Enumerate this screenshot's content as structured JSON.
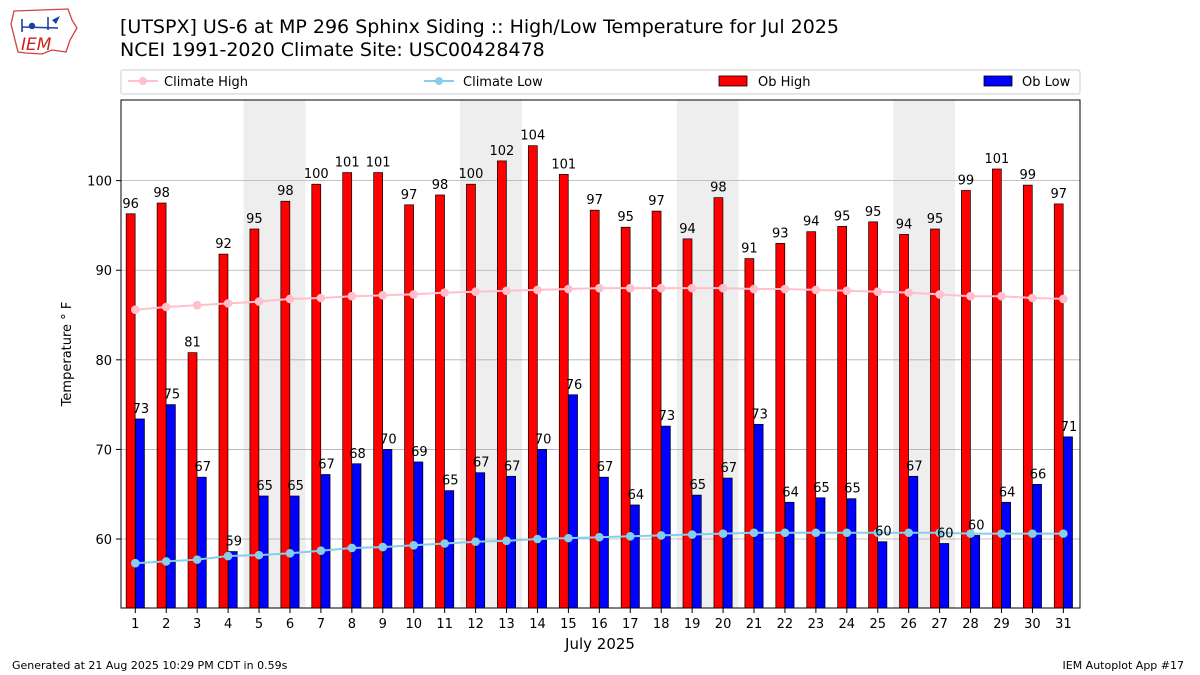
{
  "header": {
    "title_line1": "[UTSPX] US-6 at MP 296 Sphinx Siding  :: High/Low Temperature for Jul 2025",
    "title_line2": "NCEI 1991-2020 Climate Site: USC00428478",
    "logo_text": "IEM"
  },
  "footer": {
    "left": "Generated at 21 Aug 2025 10:29 PM CDT in 0.59s",
    "right": "IEM Autoplot App #17"
  },
  "colors": {
    "ob_high": "#ff0000",
    "ob_low": "#0000ff",
    "climate_high": "#ffc0cb",
    "climate_low": "#87ceeb",
    "weekend_shade": "#eeeeee"
  },
  "chart_data": {
    "type": "bar",
    "xlabel": "July 2025",
    "ylabel": "Temperature ° F",
    "ylim": [
      52.3,
      109
    ],
    "yticks": [
      60,
      70,
      80,
      90,
      100
    ],
    "grid": true,
    "legend_position": "top",
    "categories": [
      "1",
      "2",
      "3",
      "4",
      "5",
      "6",
      "7",
      "8",
      "9",
      "10",
      "11",
      "12",
      "13",
      "14",
      "15",
      "16",
      "17",
      "18",
      "19",
      "20",
      "21",
      "22",
      "23",
      "24",
      "25",
      "26",
      "27",
      "28",
      "29",
      "30",
      "31"
    ],
    "shaded_days": [
      [
        5,
        6
      ],
      [
        12,
        13
      ],
      [
        19,
        20
      ],
      [
        26,
        27
      ]
    ],
    "series": [
      {
        "name": "Ob High",
        "kind": "bar",
        "values": [
          96.3,
          97.5,
          80.8,
          91.8,
          94.6,
          97.7,
          99.6,
          100.9,
          100.9,
          97.3,
          98.4,
          99.6,
          102.2,
          103.9,
          100.7,
          96.7,
          94.8,
          96.6,
          93.5,
          98.1,
          91.3,
          93.0,
          94.3,
          94.9,
          95.4,
          94.0,
          94.6,
          98.9,
          101.3,
          99.5,
          97.4
        ],
        "labels": [
          "96",
          "98",
          "81",
          "92",
          "95",
          "98",
          "100",
          "101",
          "101",
          "97",
          "98",
          "100",
          "102",
          "104",
          "101",
          "97",
          "95",
          "97",
          "94",
          "98",
          "91",
          "93",
          "94",
          "95",
          "95",
          "94",
          "95",
          "99",
          "101",
          "99",
          "97"
        ]
      },
      {
        "name": "Ob Low",
        "kind": "bar",
        "values": [
          73.4,
          75.0,
          66.9,
          58.6,
          64.8,
          64.8,
          67.2,
          68.4,
          70.0,
          68.6,
          65.4,
          67.4,
          67.0,
          70.0,
          76.1,
          66.9,
          63.8,
          72.6,
          64.9,
          66.8,
          72.8,
          64.1,
          64.6,
          64.5,
          59.7,
          67.0,
          59.5,
          60.4,
          64.1,
          66.1,
          71.4
        ],
        "labels": [
          "73",
          "75",
          "67",
          "59",
          "65",
          "65",
          "67",
          "68",
          "70",
          "69",
          "65",
          "67",
          "67",
          "70",
          "76",
          "67",
          "64",
          "73",
          "65",
          "67",
          "73",
          "64",
          "65",
          "65",
          "60",
          "67",
          "60",
          "60",
          "64",
          "66",
          "71"
        ]
      },
      {
        "name": "Climate High",
        "kind": "line",
        "values": [
          85.6,
          85.9,
          86.1,
          86.3,
          86.5,
          86.8,
          86.9,
          87.1,
          87.2,
          87.3,
          87.5,
          87.6,
          87.7,
          87.8,
          87.9,
          88.0,
          88.0,
          88.0,
          88.0,
          88.0,
          87.9,
          87.9,
          87.8,
          87.7,
          87.6,
          87.5,
          87.3,
          87.1,
          87.1,
          86.9,
          86.8
        ]
      },
      {
        "name": "Climate Low",
        "kind": "line",
        "values": [
          57.3,
          57.5,
          57.7,
          58.1,
          58.2,
          58.4,
          58.7,
          59.0,
          59.1,
          59.3,
          59.5,
          59.7,
          59.8,
          60.0,
          60.1,
          60.2,
          60.3,
          60.4,
          60.5,
          60.6,
          60.7,
          60.7,
          60.7,
          60.7,
          60.7,
          60.7,
          60.7,
          60.6,
          60.6,
          60.6,
          60.6
        ]
      }
    ]
  }
}
